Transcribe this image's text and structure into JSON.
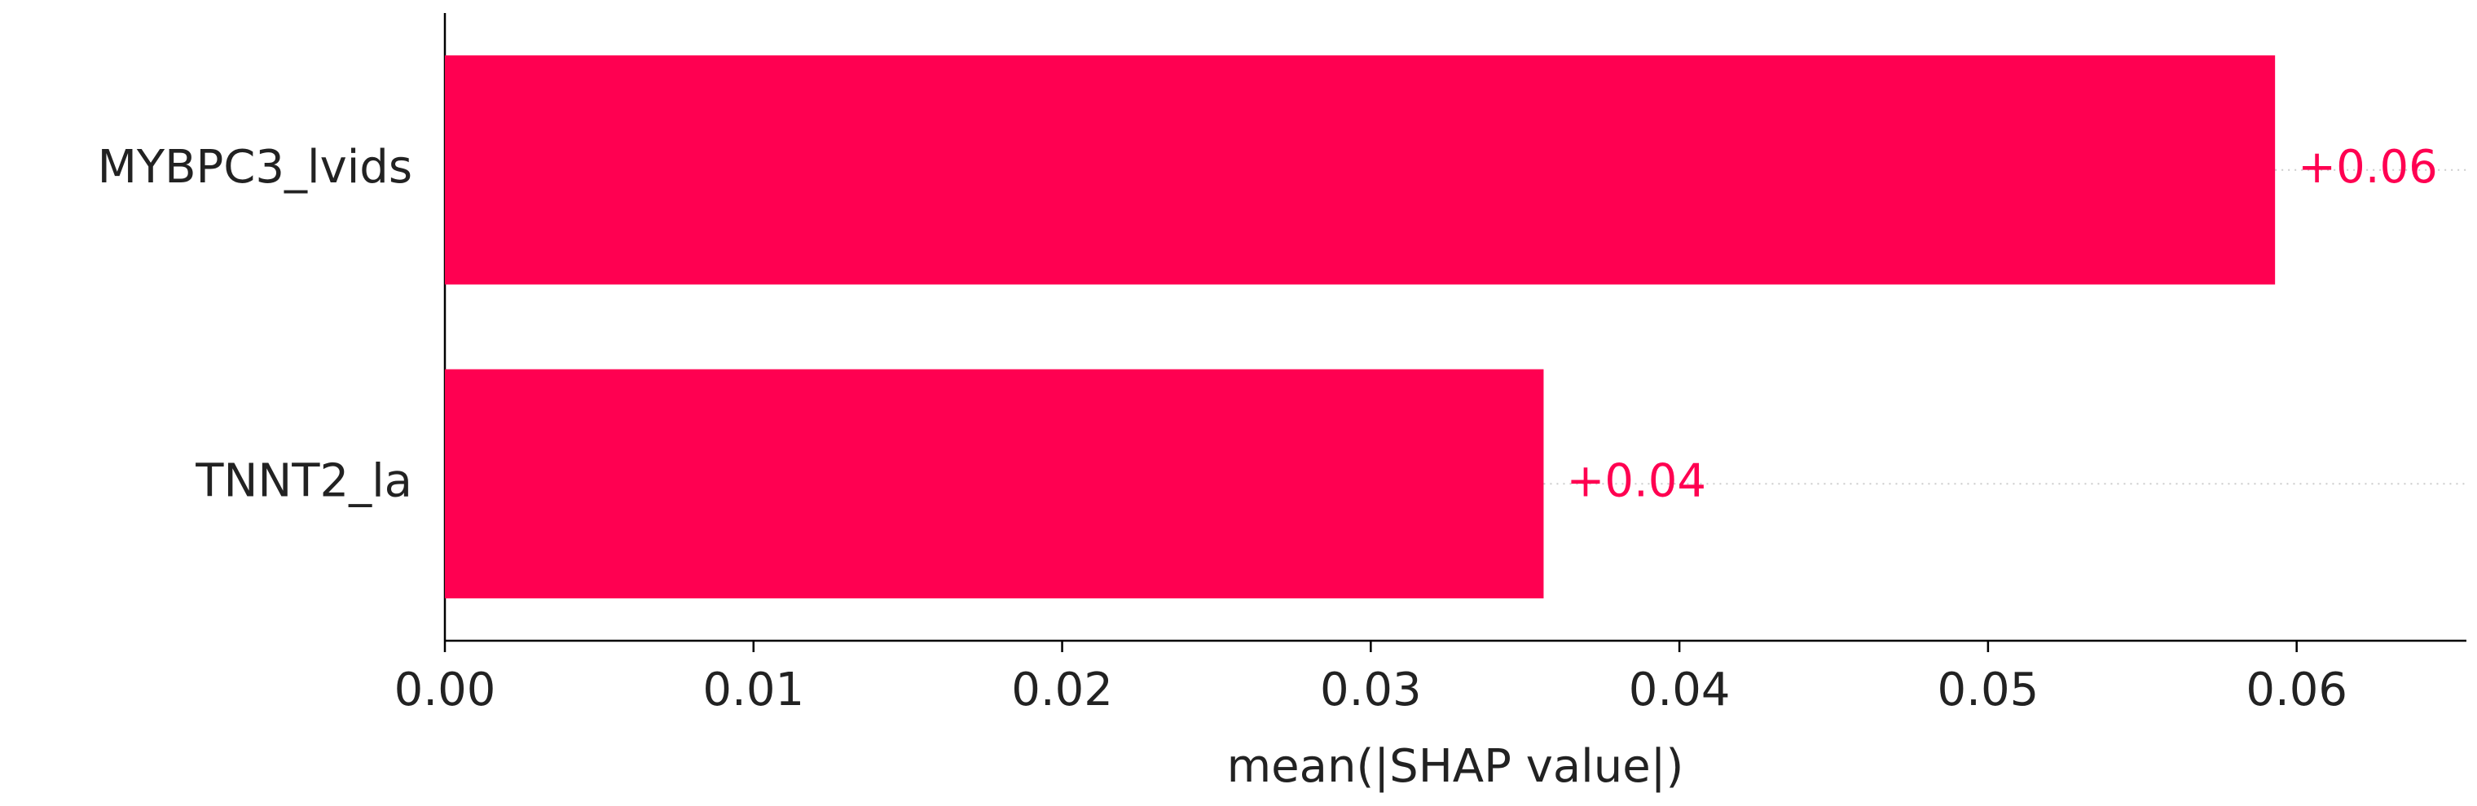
{
  "chart_data": {
    "type": "bar",
    "orientation": "horizontal",
    "categories": [
      "MYBPC3_lvids",
      "TNNT2_la"
    ],
    "values": [
      0.0593,
      0.0356
    ],
    "value_labels": [
      "+0.06",
      "+0.04"
    ],
    "color": "#ff0051",
    "xlabel": "mean(|SHAP value|)",
    "xlim": [
      0,
      0.0655
    ],
    "xticks": [
      {
        "value": 0,
        "label": "0.00"
      },
      {
        "value": 0.01,
        "label": "0.01"
      },
      {
        "value": 0.02,
        "label": "0.02"
      },
      {
        "value": 0.03,
        "label": "0.03"
      },
      {
        "value": 0.04,
        "label": "0.04"
      },
      {
        "value": 0.05,
        "label": "0.05"
      },
      {
        "value": 0.06,
        "label": "0.06"
      }
    ]
  }
}
